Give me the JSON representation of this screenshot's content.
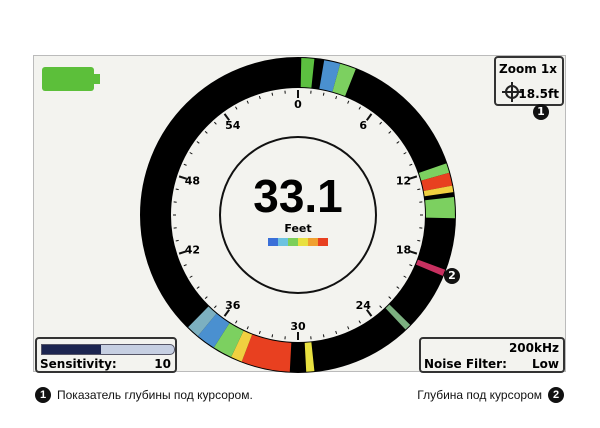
{
  "status": {
    "battery_icon": "battery-full-icon",
    "battery_color": "#5cbf3a"
  },
  "dial": {
    "depth_value": "33.1",
    "depth_unit": "Feet",
    "scale_labels": [
      "0",
      "6",
      "12",
      "18",
      "24",
      "30",
      "36",
      "42",
      "48",
      "54"
    ],
    "scale_max": 60,
    "legend_colors": [
      "#3a6fd8",
      "#6cc2e0",
      "#7ccf5a",
      "#e8e040",
      "#f0a030",
      "#e84020"
    ],
    "returns": [
      {
        "from": 0.2,
        "to": 1.0,
        "color": "#5cc040"
      },
      {
        "from": 1.6,
        "to": 2.6,
        "color": "#4a90d0"
      },
      {
        "from": 2.6,
        "to": 3.6,
        "color": "#7cd060"
      },
      {
        "from": 11.8,
        "to": 12.4,
        "color": "#7cd060"
      },
      {
        "from": 12.4,
        "to": 13.2,
        "color": "#e84020"
      },
      {
        "from": 13.2,
        "to": 13.6,
        "color": "#f0d040"
      },
      {
        "from": 13.9,
        "to": 15.2,
        "color": "#7cd060"
      },
      {
        "from": 18.4,
        "to": 18.8,
        "color": "#c83060"
      },
      {
        "from": 22.4,
        "to": 22.8,
        "color": "#7cb080"
      },
      {
        "from": 29.0,
        "to": 29.5,
        "color": "#e8e040"
      },
      {
        "from": 30.5,
        "to": 33.5,
        "color": "#e84020"
      },
      {
        "from": 33.5,
        "to": 34.2,
        "color": "#f0d040"
      },
      {
        "from": 34.2,
        "to": 35.4,
        "color": "#7cd060"
      },
      {
        "from": 35.4,
        "to": 36.6,
        "color": "#4a90d0"
      },
      {
        "from": 36.6,
        "to": 37.4,
        "color": "#7cb0c0"
      }
    ]
  },
  "zoom_box": {
    "zoom_label": "Zoom 1x",
    "cursor_icon": "crosshair-icon",
    "cursor_depth": "18.5ft"
  },
  "sensitivity": {
    "label": "Sensitivity:",
    "value": "10",
    "level_percent": 45
  },
  "sonar": {
    "frequency": "200kHz",
    "noise_label": "Noise Filter:",
    "noise_value": "Low"
  },
  "callouts": {
    "badge1": "1",
    "badge2": "2",
    "caption1": "Показатель глубины под курсором.",
    "caption2": "Глубина под курсором"
  }
}
